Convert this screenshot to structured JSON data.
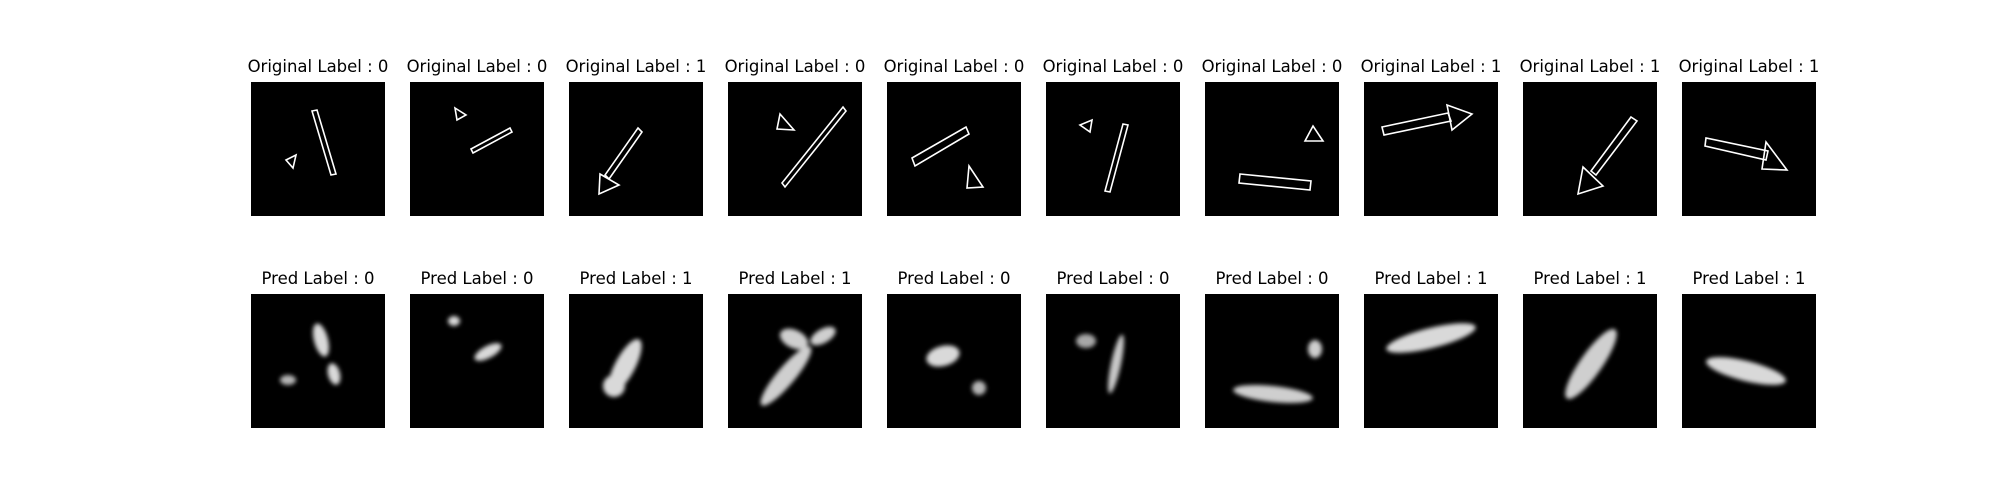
{
  "figure": {
    "original_titles": [
      "Original Label : 0",
      "Original Label : 0",
      "Original Label : 1",
      "Original Label : 0",
      "Original Label : 0",
      "Original Label : 0",
      "Original Label : 0",
      "Original Label : 1",
      "Original Label : 1",
      "Original Label : 1"
    ],
    "pred_titles": [
      "Pred Label : 0",
      "Pred Label : 0",
      "Pred Label : 1",
      "Pred Label : 1",
      "Pred Label : 0",
      "Pred Label : 0",
      "Pred Label : 0",
      "Pred Label : 1",
      "Pred Label : 1",
      "Pred Label : 1"
    ],
    "original_labels": [
      0,
      0,
      1,
      0,
      0,
      0,
      0,
      1,
      1,
      1
    ],
    "pred_labels": [
      0,
      0,
      1,
      1,
      0,
      0,
      0,
      1,
      1,
      1
    ],
    "colors": {
      "panel_background": "#000000",
      "shape_stroke": "#ffffff",
      "blob_fill": "#d9d9d9"
    }
  }
}
